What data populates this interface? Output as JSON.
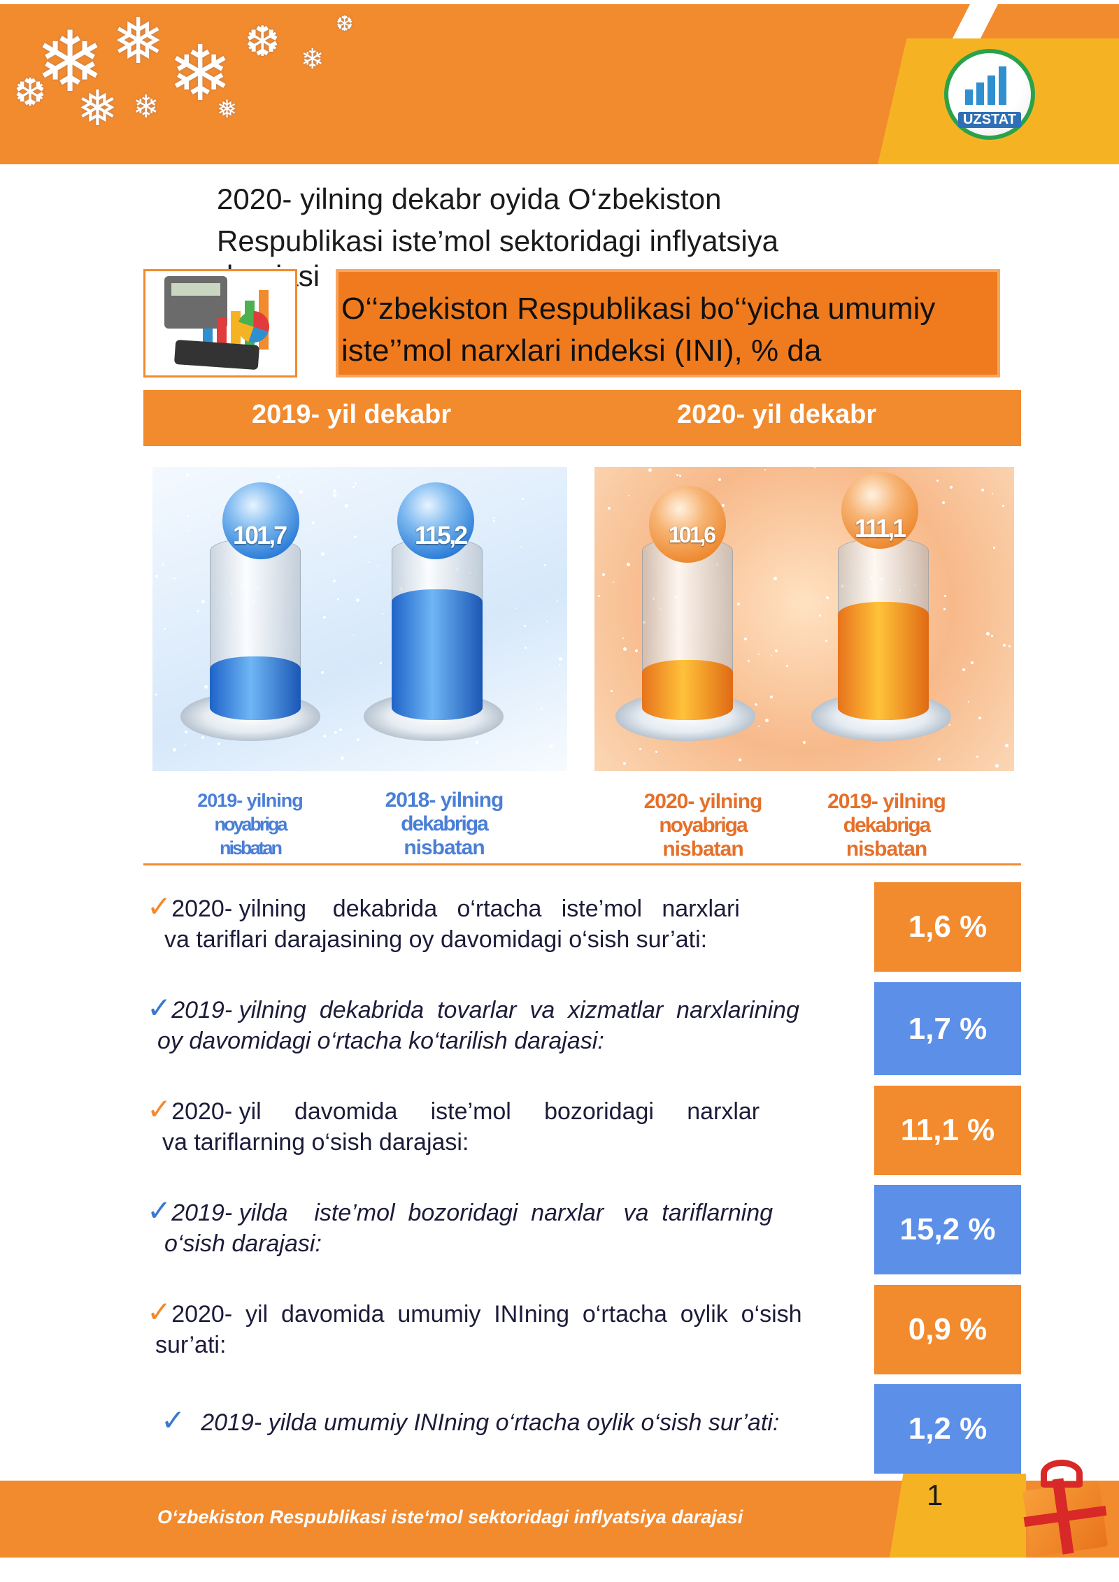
{
  "header": {
    "logo_text": "UZSTAT",
    "brand_color": "#f28a2e",
    "accent_yellow": "#f5b324"
  },
  "title": {
    "line1": "2020- yilning dekabr oyida O‘zbekiston",
    "line2": "Respublikasi iste’mol sektoridagi inflyatsiya",
    "line3": "darajasi"
  },
  "heading": {
    "line1": "O‘‘zbekiston Respublikasi bo‘‘yicha umumiy",
    "line2": "iste’’mol narxlari indeksi (INI), % da"
  },
  "year_bar": {
    "left": "2019- yil dekabr",
    "right": "2020- yil dekabr"
  },
  "panels": {
    "blue": [
      {
        "value": "101,7",
        "fill_fraction": 0.35,
        "caption_line1": "2019- yilning",
        "caption_line2": "noyabriga",
        "caption_line3": "nisbatan"
      },
      {
        "value": "115,2",
        "fill_fraction": 0.72,
        "caption_line1": "2018- yilning",
        "caption_line2": "dekabriga",
        "caption_line3": "nisbatan"
      }
    ],
    "orange": [
      {
        "value": "101,6",
        "fill_fraction": 0.33,
        "caption_line1": "2020- yilning",
        "caption_line2": "noyabriga",
        "caption_line3": "nisbatan"
      },
      {
        "value": "111,1",
        "fill_fraction": 0.65,
        "caption_line1": "2019- yilning",
        "caption_line2": "dekabriga",
        "caption_line3": "nisbatan"
      }
    ]
  },
  "stats": [
    {
      "line1": "2020- yilning    dekabrida   o‘rtacha   iste’mol   narxlari",
      "line2": "va tariflari darajasining oy davomidagi o‘sish sur’ati:",
      "value": "1,6 %",
      "color": "orange",
      "italic": false
    },
    {
      "line1": "2019- yilning  dekabrida  tovarlar  va  xizmatlar  narxlarining",
      "line2": "oy davomidagi o‘rtacha ko‘tarilish darajasi:",
      "value": "1,7 %",
      "color": "blue",
      "italic": true
    },
    {
      "line1": "2020- yil     davomida     iste’mol     bozoridagi     narxlar",
      "line2": "va tariflarning o‘sish darajasi:",
      "value": "11,1 %",
      "color": "orange",
      "italic": false
    },
    {
      "line1": "2019- yilda    iste’mol  bozoridagi  narxlar   va  tariflarning",
      "line2": "o‘sish darajasi:",
      "value": "15,2 %",
      "color": "blue",
      "italic": true
    },
    {
      "line1": "2020-  yil  davomida  umumiy  INIning  o‘rtacha  oylik  o‘sish",
      "line2": "sur’ati:",
      "value": "0,9 %",
      "color": "orange",
      "italic": false
    },
    {
      "line1": "2019- yilda umumiy INIning o‘rtacha oylik o‘sish sur’ati:",
      "line2": "",
      "value": "1,2 %",
      "color": "blue",
      "italic": true
    }
  ],
  "footer": {
    "text": "O‘zbekiston Respublikasi iste‘mol sektoridagi inflyatsiya darajasi",
    "page_number": "1"
  }
}
